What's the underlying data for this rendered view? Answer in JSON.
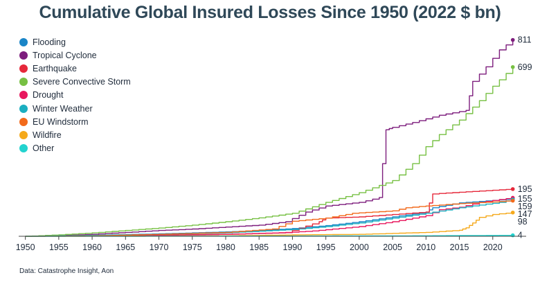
{
  "chart_data": {
    "type": "line",
    "title": "Cumulative Global Insured Losses Since 1950 (2022 $ bn)",
    "xlabel": "",
    "ylabel": "",
    "source": "Data: Catastrophe Insight, Aon",
    "xlim": [
      1949,
      2025
    ],
    "ylim": [
      0,
      850
    ],
    "x_ticks": [
      1950,
      1955,
      1960,
      1965,
      1970,
      1975,
      1980,
      1985,
      1990,
      1995,
      2000,
      2005,
      2010,
      2015,
      2020
    ],
    "grid": false,
    "legend_position": "top-left",
    "series": [
      {
        "name": "Flooding",
        "color": "#1a85c7",
        "end_label": "155",
        "points": [
          [
            1950,
            0
          ],
          [
            1960,
            4
          ],
          [
            1970,
            10
          ],
          [
            1980,
            18
          ],
          [
            1985,
            24
          ],
          [
            1990,
            32
          ],
          [
            1995,
            44
          ],
          [
            2000,
            60
          ],
          [
            2005,
            80
          ],
          [
            2010,
            100
          ],
          [
            2011,
            118
          ],
          [
            2015,
            138
          ],
          [
            2020,
            148
          ],
          [
            2023,
            155
          ]
        ]
      },
      {
        "name": "Tropical Cyclone",
        "color": "#7d1d7d",
        "end_label": "811",
        "points": [
          [
            1950,
            0
          ],
          [
            1955,
            3
          ],
          [
            1960,
            8
          ],
          [
            1965,
            16
          ],
          [
            1970,
            24
          ],
          [
            1975,
            30
          ],
          [
            1980,
            38
          ],
          [
            1985,
            46
          ],
          [
            1989,
            60
          ],
          [
            1992,
            100
          ],
          [
            1995,
            125
          ],
          [
            2000,
            140
          ],
          [
            2003,
            160
          ],
          [
            2004,
            440
          ],
          [
            2005,
            450
          ],
          [
            2008,
            470
          ],
          [
            2012,
            500
          ],
          [
            2016,
            520
          ],
          [
            2017,
            640
          ],
          [
            2019,
            700
          ],
          [
            2021,
            770
          ],
          [
            2023,
            811
          ]
        ]
      },
      {
        "name": "Earthquake",
        "color": "#e6283a",
        "end_label": "195",
        "points": [
          [
            1950,
            0
          ],
          [
            1960,
            2
          ],
          [
            1970,
            5
          ],
          [
            1980,
            8
          ],
          [
            1989,
            15
          ],
          [
            1994,
            60
          ],
          [
            1995,
            75
          ],
          [
            2000,
            80
          ],
          [
            2010,
            100
          ],
          [
            2011,
            175
          ],
          [
            2015,
            182
          ],
          [
            2020,
            190
          ],
          [
            2023,
            195
          ]
        ]
      },
      {
        "name": "Severe Convective Storm",
        "color": "#77c043",
        "end_label": "699",
        "points": [
          [
            1950,
            0
          ],
          [
            1955,
            6
          ],
          [
            1960,
            14
          ],
          [
            1965,
            24
          ],
          [
            1970,
            34
          ],
          [
            1975,
            46
          ],
          [
            1980,
            60
          ],
          [
            1985,
            76
          ],
          [
            1990,
            95
          ],
          [
            1995,
            140
          ],
          [
            2000,
            180
          ],
          [
            2005,
            230
          ],
          [
            2008,
            300
          ],
          [
            2010,
            370
          ],
          [
            2012,
            420
          ],
          [
            2015,
            480
          ],
          [
            2018,
            560
          ],
          [
            2020,
            620
          ],
          [
            2023,
            699
          ]
        ]
      },
      {
        "name": "Drought",
        "color": "#e8185e",
        "end_label": "159",
        "points": [
          [
            1950,
            0
          ],
          [
            1960,
            2
          ],
          [
            1970,
            4
          ],
          [
            1980,
            8
          ],
          [
            1988,
            14
          ],
          [
            1993,
            22
          ],
          [
            2000,
            40
          ],
          [
            2005,
            60
          ],
          [
            2010,
            85
          ],
          [
            2012,
            110
          ],
          [
            2015,
            120
          ],
          [
            2018,
            140
          ],
          [
            2020,
            148
          ],
          [
            2023,
            159
          ]
        ]
      },
      {
        "name": "Winter Weather",
        "color": "#1aaec0",
        "end_label": "",
        "points": [
          [
            1950,
            0
          ],
          [
            1960,
            4
          ],
          [
            1970,
            8
          ],
          [
            1980,
            14
          ],
          [
            1990,
            28
          ],
          [
            1995,
            40
          ],
          [
            2000,
            55
          ],
          [
            2005,
            75
          ],
          [
            2010,
            95
          ],
          [
            2015,
            118
          ],
          [
            2021,
            140
          ],
          [
            2023,
            152
          ]
        ]
      },
      {
        "name": "EU Windstorm",
        "color": "#f26a1b",
        "end_label": "147",
        "points": [
          [
            1950,
            0
          ],
          [
            1960,
            2
          ],
          [
            1965,
            5
          ],
          [
            1970,
            8
          ],
          [
            1975,
            12
          ],
          [
            1980,
            16
          ],
          [
            1987,
            30
          ],
          [
            1990,
            62
          ],
          [
            1995,
            75
          ],
          [
            1999,
            95
          ],
          [
            2005,
            105
          ],
          [
            2007,
            118
          ],
          [
            2010,
            125
          ],
          [
            2015,
            135
          ],
          [
            2020,
            142
          ],
          [
            2023,
            147
          ]
        ]
      },
      {
        "name": "Wildfire",
        "color": "#f5a91b",
        "end_label": "98",
        "points": [
          [
            1950,
            0
          ],
          [
            1970,
            1
          ],
          [
            1980,
            2
          ],
          [
            1991,
            6
          ],
          [
            2000,
            8
          ],
          [
            2005,
            12
          ],
          [
            2010,
            16
          ],
          [
            2015,
            25
          ],
          [
            2016,
            35
          ],
          [
            2017,
            55
          ],
          [
            2018,
            78
          ],
          [
            2020,
            90
          ],
          [
            2023,
            98
          ]
        ]
      },
      {
        "name": "Other",
        "color": "#22d3cf",
        "end_label": "4",
        "points": [
          [
            1950,
            0
          ],
          [
            1990,
            1
          ],
          [
            2010,
            2
          ],
          [
            2023,
            4
          ]
        ]
      }
    ]
  }
}
